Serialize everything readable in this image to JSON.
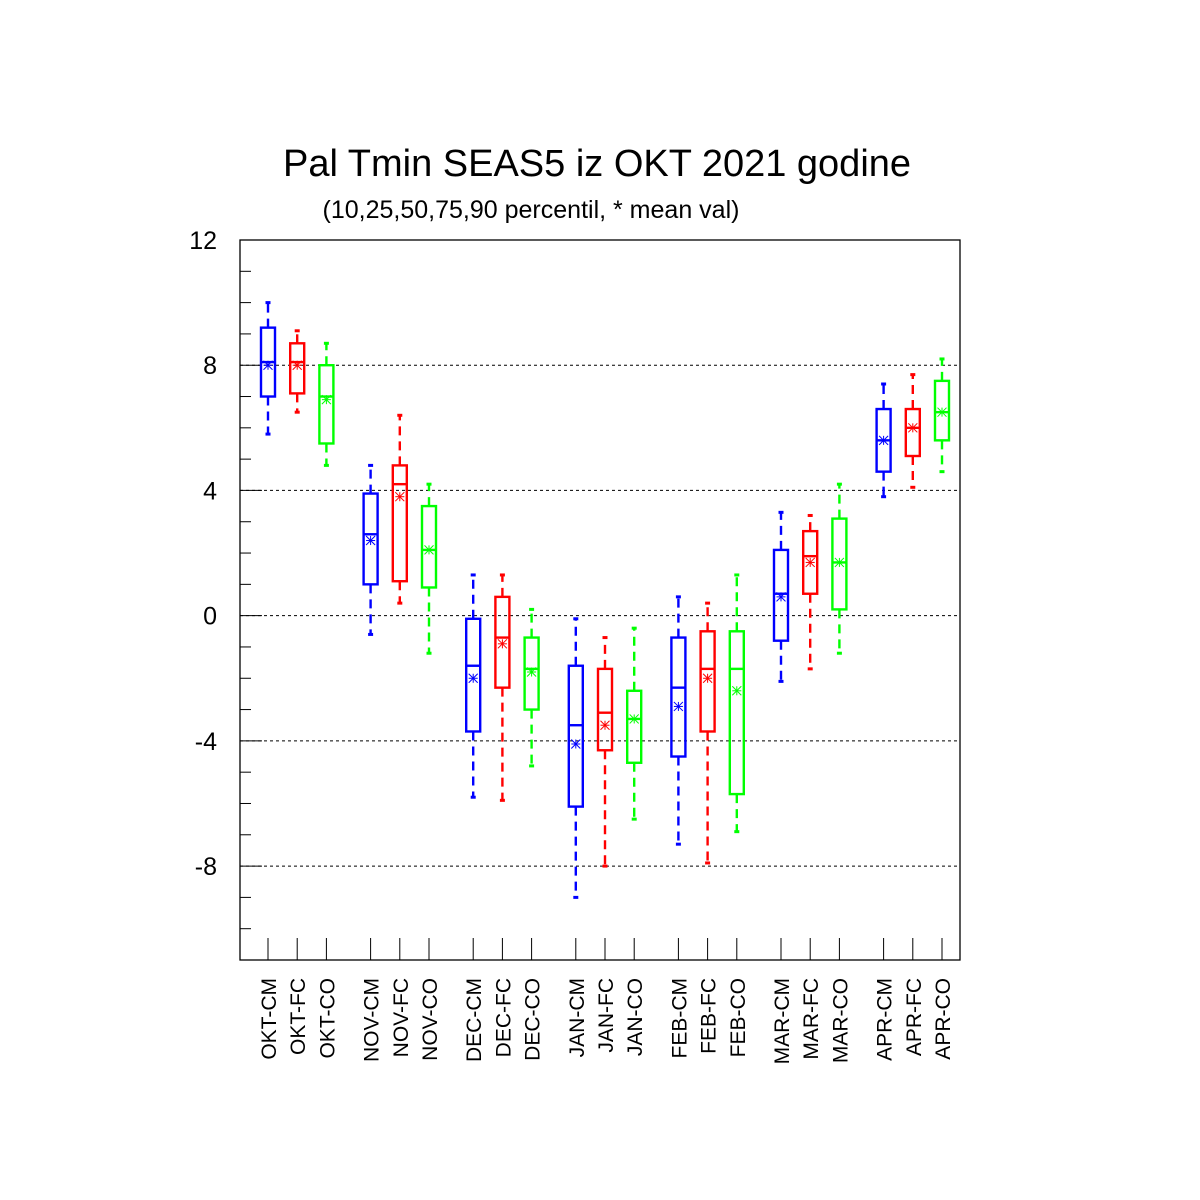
{
  "chart_data": {
    "type": "box",
    "title": "Pal Tmin SEAS5 iz OKT 2021 godine",
    "subtitle": "(10,25,50,75,90 percentil, * mean val)",
    "xlabel": "",
    "ylabel": "",
    "ylim": [
      -11,
      12
    ],
    "yticks": [
      12,
      8,
      4,
      0,
      -4,
      -8
    ],
    "ytick_labels": [
      "12",
      "8",
      "4",
      "0",
      "-4",
      "-8"
    ],
    "grid": "horizontal-dashed",
    "series_colors": {
      "CM": "#0000ff",
      "FC": "#ff0000",
      "CO": "#00ff00"
    },
    "categories": [
      "OKT-CM",
      "OKT-FC",
      "OKT-CO",
      "NOV-CM",
      "NOV-FC",
      "NOV-CO",
      "DEC-CM",
      "DEC-FC",
      "DEC-CO",
      "JAN-CM",
      "JAN-FC",
      "JAN-CO",
      "FEB-CM",
      "FEB-FC",
      "FEB-CO",
      "MAR-CM",
      "MAR-FC",
      "MAR-CO",
      "APR-CM",
      "APR-FC",
      "APR-CO"
    ],
    "boxes": [
      {
        "label": "OKT-CM",
        "kind": "CM",
        "p10": 5.8,
        "p25": 7.0,
        "p50": 8.1,
        "p75": 9.2,
        "p90": 10.0,
        "mean": 8.0
      },
      {
        "label": "OKT-FC",
        "kind": "FC",
        "p10": 6.5,
        "p25": 7.1,
        "p50": 8.1,
        "p75": 8.7,
        "p90": 9.1,
        "mean": 8.0
      },
      {
        "label": "OKT-CO",
        "kind": "CO",
        "p10": 4.8,
        "p25": 5.5,
        "p50": 7.0,
        "p75": 8.0,
        "p90": 8.7,
        "mean": 6.9
      },
      {
        "label": "NOV-CM",
        "kind": "CM",
        "p10": -0.6,
        "p25": 1.0,
        "p50": 2.6,
        "p75": 3.9,
        "p90": 4.8,
        "mean": 2.4
      },
      {
        "label": "NOV-FC",
        "kind": "FC",
        "p10": 0.4,
        "p25": 1.1,
        "p50": 4.2,
        "p75": 4.8,
        "p90": 6.4,
        "mean": 3.8
      },
      {
        "label": "NOV-CO",
        "kind": "CO",
        "p10": -1.2,
        "p25": 0.9,
        "p50": 2.1,
        "p75": 3.5,
        "p90": 4.2,
        "mean": 2.1
      },
      {
        "label": "DEC-CM",
        "kind": "CM",
        "p10": -5.8,
        "p25": -3.7,
        "p50": -1.6,
        "p75": -0.1,
        "p90": 1.3,
        "mean": -2.0
      },
      {
        "label": "DEC-FC",
        "kind": "FC",
        "p10": -5.9,
        "p25": -2.3,
        "p50": -0.7,
        "p75": 0.6,
        "p90": 1.3,
        "mean": -0.9
      },
      {
        "label": "DEC-CO",
        "kind": "CO",
        "p10": -4.8,
        "p25": -3.0,
        "p50": -1.7,
        "p75": -0.7,
        "p90": 0.2,
        "mean": -1.8
      },
      {
        "label": "JAN-CM",
        "kind": "CM",
        "p10": -9.0,
        "p25": -6.1,
        "p50": -3.5,
        "p75": -1.6,
        "p90": -0.1,
        "mean": -4.1
      },
      {
        "label": "JAN-FC",
        "kind": "FC",
        "p10": -8.0,
        "p25": -4.3,
        "p50": -3.1,
        "p75": -1.7,
        "p90": -0.7,
        "mean": -3.5
      },
      {
        "label": "JAN-CO",
        "kind": "CO",
        "p10": -6.5,
        "p25": -4.7,
        "p50": -3.3,
        "p75": -2.4,
        "p90": -0.4,
        "mean": -3.3
      },
      {
        "label": "FEB-CM",
        "kind": "CM",
        "p10": -7.3,
        "p25": -4.5,
        "p50": -2.3,
        "p75": -0.7,
        "p90": 0.6,
        "mean": -2.9
      },
      {
        "label": "FEB-FC",
        "kind": "FC",
        "p10": -7.9,
        "p25": -3.7,
        "p50": -1.7,
        "p75": -0.5,
        "p90": 0.4,
        "mean": -2.0
      },
      {
        "label": "FEB-CO",
        "kind": "CO",
        "p10": -6.9,
        "p25": -5.7,
        "p50": -1.7,
        "p75": -0.5,
        "p90": 1.3,
        "mean": -2.4
      },
      {
        "label": "MAR-CM",
        "kind": "CM",
        "p10": -2.1,
        "p25": -0.8,
        "p50": 0.7,
        "p75": 2.1,
        "p90": 3.3,
        "mean": 0.6
      },
      {
        "label": "MAR-FC",
        "kind": "FC",
        "p10": -1.7,
        "p25": 0.7,
        "p50": 1.9,
        "p75": 2.7,
        "p90": 3.2,
        "mean": 1.7
      },
      {
        "label": "MAR-CO",
        "kind": "CO",
        "p10": -1.2,
        "p25": 0.2,
        "p50": 1.7,
        "p75": 3.1,
        "p90": 4.2,
        "mean": 1.7
      },
      {
        "label": "APR-CM",
        "kind": "CM",
        "p10": 3.8,
        "p25": 4.6,
        "p50": 5.6,
        "p75": 6.6,
        "p90": 7.4,
        "mean": 5.6
      },
      {
        "label": "APR-FC",
        "kind": "FC",
        "p10": 4.1,
        "p25": 5.1,
        "p50": 6.0,
        "p75": 6.6,
        "p90": 7.7,
        "mean": 6.0
      },
      {
        "label": "APR-CO",
        "kind": "CO",
        "p10": 4.6,
        "p25": 5.6,
        "p50": 6.5,
        "p75": 7.5,
        "p90": 8.2,
        "mean": 6.5
      }
    ]
  }
}
